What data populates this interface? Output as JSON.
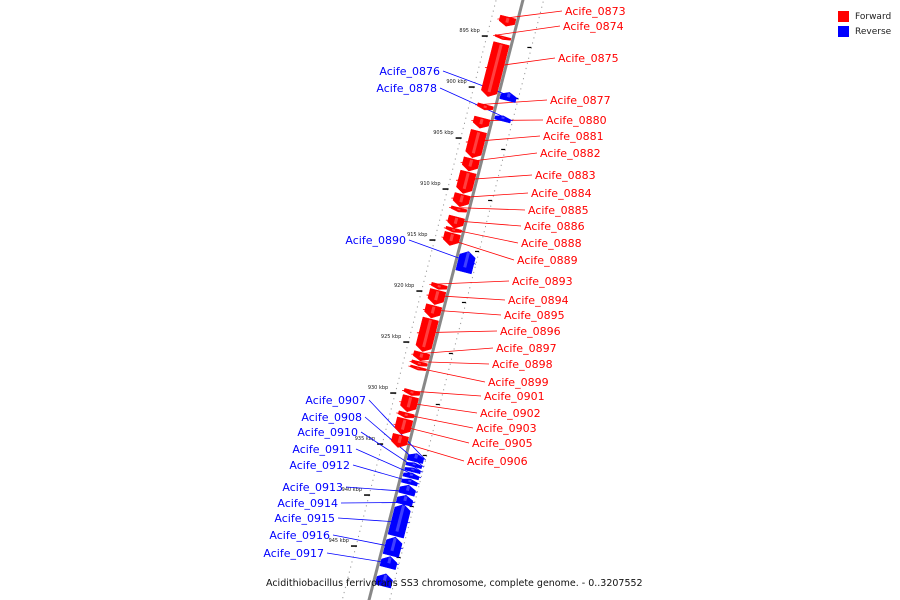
{
  "title": "Acidithiobacillus ferrivorans SS3 chromosome, complete genome. - 0..3207552",
  "legend": [
    {
      "label": "Forward",
      "color": "#ff0000"
    },
    {
      "label": "Reverse",
      "color": "#0000ff"
    }
  ],
  "colors": {
    "forward": "#ff0000",
    "reverse": "#0000ff",
    "backbone": "#888888"
  },
  "ticks": [
    "895 kbp",
    "900 kbp",
    "905 kbp",
    "910 kbp",
    "915 kbp",
    "920 kbp",
    "925 kbp",
    "930 kbp",
    "935 kbp",
    "940 kbp",
    "945 kbp"
  ],
  "genes": {
    "forward": [
      {
        "label": "Acife_0873",
        "start": 892.7,
        "end": 893.6
      },
      {
        "label": "Acife_0874",
        "start": 894.6,
        "end": 894.9
      },
      {
        "label": "Acife_0875",
        "start": 895.3,
        "end": 900.5
      },
      {
        "label": "Acife_0877",
        "start": 901.3,
        "end": 901.8
      },
      {
        "label": "Acife_0880",
        "start": 902.6,
        "end": 903.6
      },
      {
        "label": "Acife_0881",
        "start": 903.9,
        "end": 906.5
      },
      {
        "label": "Acife_0882",
        "start": 906.6,
        "end": 907.8
      },
      {
        "label": "Acife_0883",
        "start": 907.9,
        "end": 910.0
      },
      {
        "label": "Acife_0884",
        "start": 910.1,
        "end": 911.3
      },
      {
        "label": "Acife_0885",
        "start": 911.4,
        "end": 911.8
      },
      {
        "label": "Acife_0886",
        "start": 912.3,
        "end": 913.4
      },
      {
        "label": "Acife_0888",
        "start": 913.4,
        "end": 913.8
      },
      {
        "label": "Acife_0889",
        "start": 913.9,
        "end": 915.1
      },
      {
        "label": "Acife_0893",
        "start": 918.9,
        "end": 919.4
      },
      {
        "label": "Acife_0894",
        "start": 919.5,
        "end": 920.9
      },
      {
        "label": "Acife_0895",
        "start": 921.0,
        "end": 922.2
      },
      {
        "label": "Acife_0896",
        "start": 922.3,
        "end": 925.5
      },
      {
        "label": "Acife_0897",
        "start": 925.6,
        "end": 926.4
      },
      {
        "label": "Acife_0898",
        "start": 926.5,
        "end": 926.9
      },
      {
        "label": "Acife_0899",
        "start": 927.0,
        "end": 927.3
      },
      {
        "label": "Acife_0901",
        "start": 929.3,
        "end": 929.8
      },
      {
        "label": "Acife_0902",
        "start": 929.9,
        "end": 931.4
      },
      {
        "label": "Acife_0903",
        "start": 931.5,
        "end": 932.0
      },
      {
        "label": "Acife_0905",
        "start": 932.1,
        "end": 933.6
      },
      {
        "label": "Acife_0906",
        "start": 933.7,
        "end": 934.9
      }
    ],
    "reverse": [
      {
        "label": "Acife_0876",
        "start": 899.6,
        "end": 900.4
      },
      {
        "label": "Acife_0878",
        "start": 901.9,
        "end": 902.4
      },
      {
        "label": "Acife_0890",
        "start": 915.2,
        "end": 917.2
      },
      {
        "label": "Acife_0907",
        "start": 935.0,
        "end": 935.8
      },
      {
        "label": "Acife_0908",
        "start": 935.9,
        "end": 936.3
      },
      {
        "label": "Acife_0910",
        "start": 936.4,
        "end": 936.8
      },
      {
        "label": "Acife_0911",
        "start": 936.9,
        "end": 937.4
      },
      {
        "label": "Acife_0912",
        "start": 937.5,
        "end": 938.0
      },
      {
        "label": "Acife_0913",
        "start": 938.1,
        "end": 939.0
      },
      {
        "label": "Acife_0914",
        "start": 939.1,
        "end": 940.0
      },
      {
        "label": "Acife_0915",
        "start": 940.0,
        "end": 943.1
      },
      {
        "label": "Acife_0916",
        "start": 943.2,
        "end": 945.0
      },
      {
        "label": "Acife_0917",
        "start": 945.1,
        "end": 946.2
      },
      {
        "label": "",
        "start": 946.8,
        "end": 948.0
      }
    ]
  }
}
